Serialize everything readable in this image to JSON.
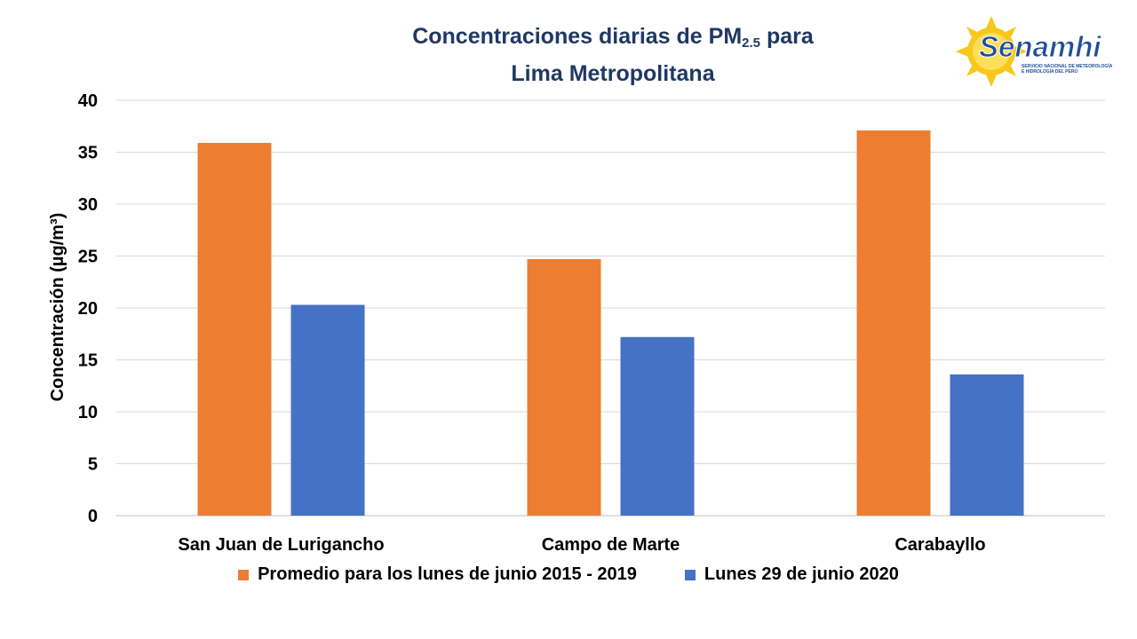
{
  "chart_data": {
    "type": "bar",
    "title_main": "Concentraciones diarias de PM",
    "title_sub": "2.5",
    "title_tail": " para",
    "title_line2": "Lima Metropolitana",
    "ylabel": "Concentración (µg/m³)",
    "xlabel": "",
    "ylim": [
      0,
      40
    ],
    "yticks": [
      0,
      5,
      10,
      15,
      20,
      25,
      30,
      35,
      40
    ],
    "grid": true,
    "categories": [
      "San Juan de Lurigancho",
      "Campo de Marte",
      "Carabayllo"
    ],
    "series": [
      {
        "name": "Promedio para los lunes de junio 2015 - 2019",
        "color": "#ed7d31",
        "values": [
          35.9,
          24.7,
          37.1
        ]
      },
      {
        "name": "Lunes 29 de junio 2020",
        "color": "#4472c4",
        "values": [
          20.3,
          17.2,
          13.6
        ]
      }
    ],
    "legend_position": "bottom"
  },
  "logo": {
    "name": "Senamhi",
    "subtitle_line1": "SERVICIO NACIONAL DE METEOROLOGÍA",
    "subtitle_line2": "E HIDROLOGÍA DEL PERÚ"
  }
}
